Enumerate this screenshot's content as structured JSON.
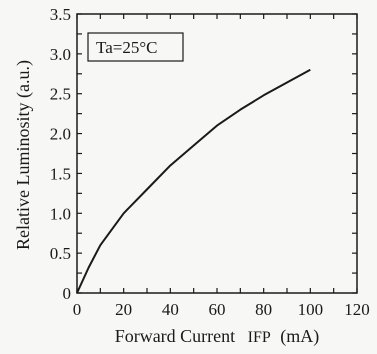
{
  "chart_data": {
    "type": "line",
    "xlabel": "Forward Current",
    "xlabel_symbol": "IFP",
    "xlabel_unit": "(mA)",
    "ylabel": "Relative Luminosity (a.u.)",
    "annotation": "Ta=25°C",
    "xlim": [
      0,
      120
    ],
    "ylim": [
      0,
      3.5
    ],
    "x_ticks": [
      "0",
      "20",
      "40",
      "60",
      "80",
      "100",
      "120"
    ],
    "y_ticks": [
      "0",
      "0.5",
      "1.0",
      "1.5",
      "2.0",
      "2.5",
      "3.0",
      "3.5"
    ],
    "grid": false,
    "series": [
      {
        "x": [
          0,
          5,
          10,
          20,
          30,
          40,
          50,
          60,
          70,
          80,
          90,
          100
        ],
        "y": [
          0,
          0.32,
          0.6,
          1.0,
          1.3,
          1.6,
          1.85,
          2.1,
          2.3,
          2.48,
          2.64,
          2.8
        ]
      }
    ],
    "line_color": "#1a1a1a"
  }
}
